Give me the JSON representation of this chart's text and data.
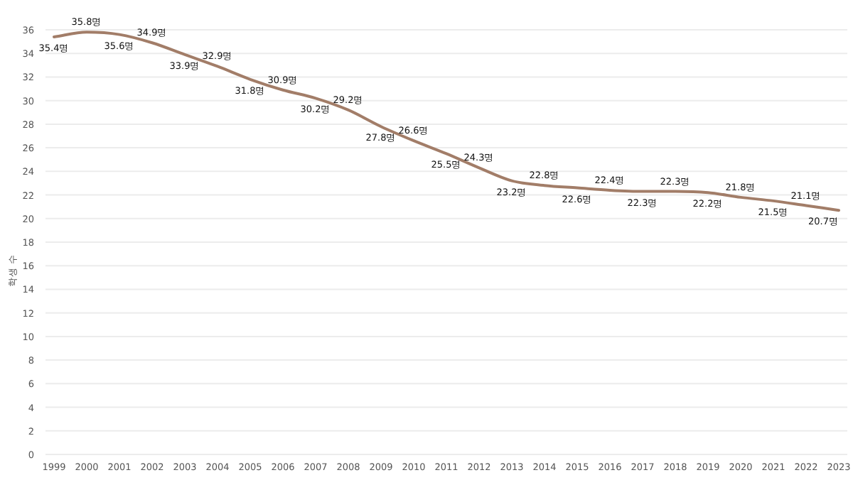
{
  "chart_data": {
    "type": "line",
    "ylabel": "학생 수",
    "categories": [
      "1999",
      "2000",
      "2001",
      "2002",
      "2003",
      "2004",
      "2005",
      "2006",
      "2007",
      "2008",
      "2009",
      "2010",
      "2011",
      "2012",
      "2013",
      "2014",
      "2015",
      "2016",
      "2017",
      "2018",
      "2019",
      "2020",
      "2021",
      "2022",
      "2023"
    ],
    "series": [
      {
        "color": "#a27d68",
        "values": [
          35.4,
          35.8,
          35.6,
          34.9,
          33.9,
          32.9,
          31.8,
          30.9,
          30.2,
          29.2,
          27.8,
          26.6,
          25.5,
          24.3,
          23.2,
          22.8,
          22.6,
          22.4,
          22.3,
          22.3,
          22.2,
          21.8,
          21.5,
          21.1,
          20.7
        ],
        "value_labels": [
          "35.4명",
          "35.8명",
          "35.6명",
          "34.9명",
          "33.9명",
          "32.9명",
          "31.8명",
          "30.9명",
          "30.2명",
          "29.2명",
          "27.8명",
          "26.6명",
          "25.5명",
          "24.3명",
          "23.2명",
          "22.8명",
          "22.6명",
          "22.4명",
          "22.3명",
          "22.3명",
          "22.2명",
          "21.8명",
          "21.5명",
          "21.1명",
          "20.7명"
        ]
      }
    ],
    "ylim": [
      0,
      36
    ],
    "yticks": [
      0,
      2,
      4,
      6,
      8,
      10,
      12,
      14,
      16,
      18,
      20,
      22,
      24,
      26,
      28,
      30,
      32,
      34,
      36
    ],
    "grid": "y",
    "marker": "none",
    "line_style": "solid"
  }
}
